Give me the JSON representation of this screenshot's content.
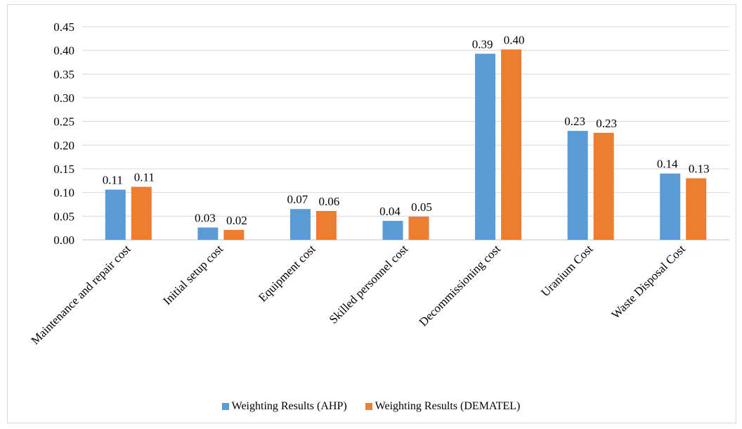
{
  "chart_data": {
    "type": "bar",
    "categories": [
      "Maintenance and repair cost",
      "Initial setup cost",
      "Equipment cost",
      "Skilled personnel cost",
      "Decommissioning cost",
      "Uranium Cost",
      "Waste Disposal Cost"
    ],
    "series": [
      {
        "name": "Weighting Results (AHP)",
        "color": "#5b9bd5",
        "values": [
          0.106,
          0.026,
          0.065,
          0.04,
          0.393,
          0.23,
          0.14
        ],
        "labels": [
          "0.11",
          "0.03",
          "0.07",
          "0.04",
          "0.39",
          "0.23",
          "0.14"
        ]
      },
      {
        "name": "Weighting Results (DEMATEL)",
        "color": "#ed7d31",
        "values": [
          0.112,
          0.021,
          0.061,
          0.049,
          0.402,
          0.226,
          0.13
        ],
        "labels": [
          "0.11",
          "0.02",
          "0.06",
          "0.05",
          "0.40",
          "0.23",
          "0.13"
        ]
      }
    ],
    "yticks": [
      "0.00",
      "0.05",
      "0.10",
      "0.15",
      "0.20",
      "0.25",
      "0.30",
      "0.35",
      "0.40",
      "0.45"
    ],
    "ylim": [
      0,
      0.45
    ],
    "grid": true,
    "legend_position": "bottom"
  }
}
